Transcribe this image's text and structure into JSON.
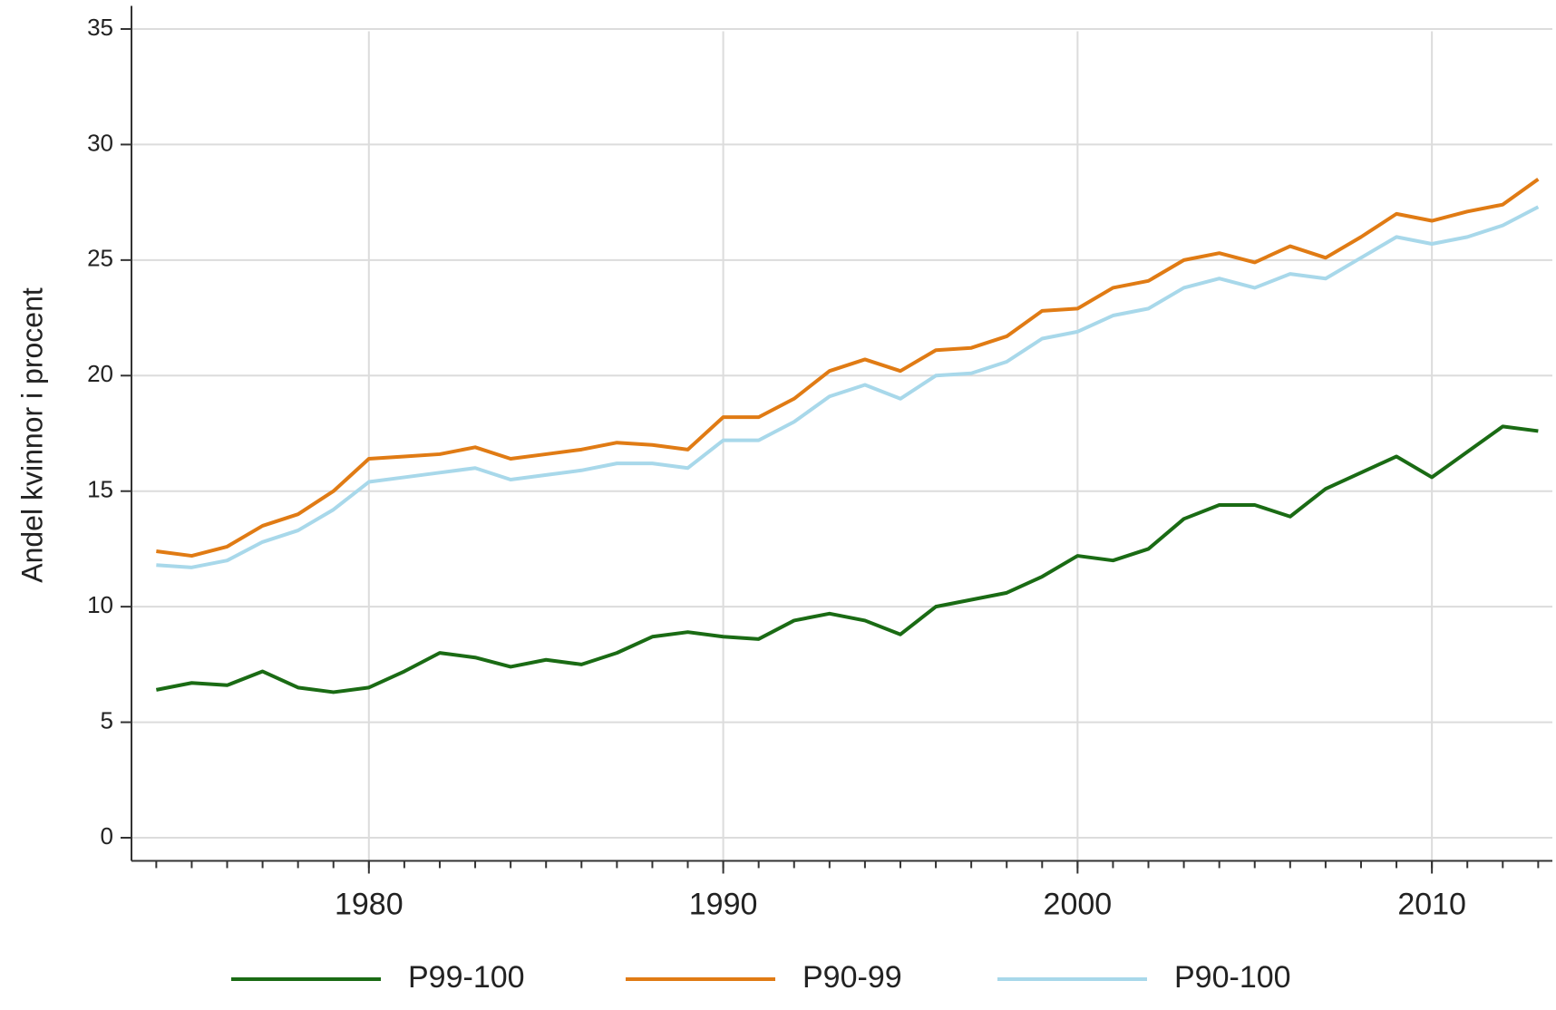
{
  "chart_data": {
    "type": "line",
    "y_label": "Andel kvinnor i procent",
    "x": [
      1974,
      1975,
      1976,
      1977,
      1978,
      1979,
      1980,
      1981,
      1982,
      1983,
      1984,
      1985,
      1986,
      1987,
      1988,
      1989,
      1990,
      1991,
      1992,
      1993,
      1994,
      1995,
      1996,
      1997,
      1998,
      1999,
      2000,
      2001,
      2002,
      2003,
      2004,
      2005,
      2006,
      2007,
      2008,
      2009,
      2010,
      2011,
      2012,
      2013
    ],
    "series": [
      {
        "name": "P99-100",
        "color": "#1a6b14",
        "values": [
          6.4,
          6.7,
          6.6,
          7.2,
          6.5,
          6.3,
          6.5,
          7.2,
          8.0,
          7.8,
          7.4,
          7.7,
          7.5,
          8.0,
          8.7,
          8.9,
          8.7,
          8.6,
          9.4,
          9.7,
          9.4,
          8.8,
          10.0,
          10.3,
          10.6,
          11.3,
          12.2,
          12.0,
          12.5,
          13.8,
          14.4,
          14.4,
          13.9,
          15.1,
          15.8,
          16.5,
          15.6,
          16.7,
          17.8,
          17.6
        ]
      },
      {
        "name": "P90-99",
        "color": "#e07b14",
        "values": [
          12.4,
          12.2,
          12.6,
          13.5,
          14.0,
          15.0,
          16.4,
          16.5,
          16.6,
          16.9,
          16.4,
          16.6,
          16.8,
          17.1,
          17.0,
          16.8,
          18.2,
          18.2,
          19.0,
          20.2,
          20.7,
          20.2,
          21.1,
          21.2,
          21.7,
          22.8,
          22.9,
          23.8,
          24.1,
          25.0,
          25.3,
          24.9,
          25.6,
          25.1,
          26.0,
          27.0,
          26.7,
          27.1,
          27.4,
          28.5
        ]
      },
      {
        "name": "P90-100",
        "color": "#a8d8ea",
        "values": [
          11.8,
          11.7,
          12.0,
          12.8,
          13.3,
          14.2,
          15.4,
          15.6,
          15.8,
          16.0,
          15.5,
          15.7,
          15.9,
          16.2,
          16.2,
          16.0,
          17.2,
          17.2,
          18.0,
          19.1,
          19.6,
          19.0,
          20.0,
          20.1,
          20.6,
          21.6,
          21.9,
          22.6,
          22.9,
          23.8,
          24.2,
          23.8,
          24.4,
          24.2,
          25.1,
          26.0,
          25.7,
          26.0,
          26.5,
          27.3
        ]
      }
    ],
    "xlim": [
      1973.3,
      2013.4
    ],
    "xticks": [
      1980,
      1990,
      2000,
      2010
    ],
    "ylim": [
      -1,
      36
    ],
    "yticks": [
      0,
      5,
      10,
      15,
      20,
      25,
      30,
      35
    ],
    "grid": true,
    "legend": "bottom"
  }
}
